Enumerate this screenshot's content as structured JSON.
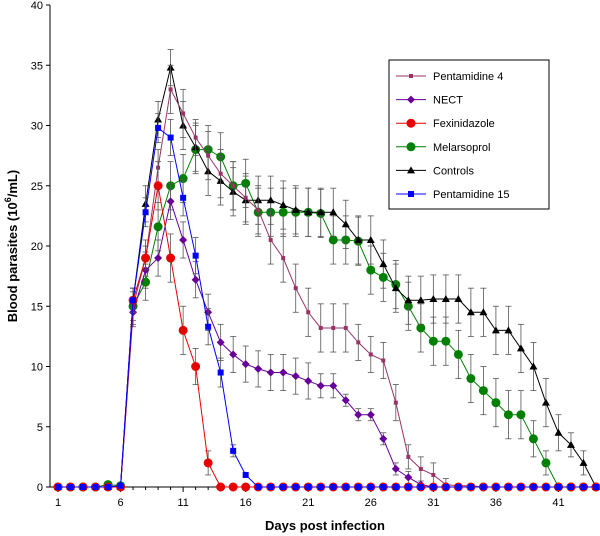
{
  "chart_data": {
    "type": "line",
    "title": "",
    "xlabel": "Days post infection",
    "ylabel_main": "Blood parasites (10",
    "ylabel_sup": "6",
    "ylabel_tail": "/mL)",
    "xlim": [
      1,
      44
    ],
    "ylim": [
      0,
      40
    ],
    "xticks": [
      1,
      6,
      11,
      16,
      21,
      26,
      31,
      36,
      41
    ],
    "yticks": [
      0,
      5,
      10,
      15,
      20,
      25,
      30,
      35,
      40
    ],
    "legend_position": "top-right",
    "series": [
      {
        "name": "Pentamidine 4",
        "color": "#993366",
        "marker": "square-small",
        "x": [
          1,
          2,
          3,
          4,
          5,
          6,
          7,
          8,
          9,
          10,
          11,
          12,
          13,
          14,
          15,
          16,
          17,
          18,
          19,
          20,
          21,
          22,
          23,
          24,
          25,
          26,
          27,
          28,
          29,
          30,
          31,
          32,
          33,
          34,
          35,
          36,
          37,
          38,
          39,
          40,
          41,
          42,
          43,
          44
        ],
        "y": [
          0,
          0,
          0,
          0,
          0,
          0,
          15,
          19,
          26.5,
          33,
          31,
          29,
          27.5,
          26,
          25,
          24,
          23,
          20.5,
          19,
          16.5,
          14.5,
          13.2,
          13.2,
          13.2,
          12,
          11,
          10.5,
          7,
          2.5,
          1.5,
          1,
          0.2,
          0.1,
          0.1,
          0,
          0,
          0,
          0,
          0,
          0,
          0,
          0,
          0,
          0
        ],
        "err": [
          0,
          0,
          0,
          0,
          0,
          0,
          1.2,
          1.5,
          1.5,
          2,
          2,
          1.5,
          2,
          2,
          2,
          2,
          2,
          2,
          2,
          2,
          2,
          2,
          2,
          2,
          1.5,
          1.5,
          1.5,
          1.5,
          1,
          1,
          1,
          0.5,
          0,
          0,
          0,
          0,
          0,
          0,
          0,
          0,
          0,
          0,
          0,
          0
        ]
      },
      {
        "name": "NECT",
        "color": "#660099",
        "marker": "diamond",
        "x": [
          1,
          2,
          3,
          4,
          5,
          6,
          7,
          8,
          9,
          10,
          11,
          12,
          13,
          14,
          15,
          16,
          17,
          18,
          19,
          20,
          21,
          22,
          23,
          24,
          25,
          26,
          27,
          28,
          29,
          30,
          31,
          32,
          33,
          34,
          35,
          36,
          37,
          38,
          39,
          40,
          41,
          42,
          43,
          44
        ],
        "y": [
          0,
          0,
          0,
          0,
          0,
          0,
          14.5,
          18,
          19,
          23.7,
          20.5,
          17.2,
          14.5,
          12,
          11,
          10.2,
          9.8,
          9.5,
          9.5,
          9.2,
          8.8,
          8.4,
          8.4,
          7.2,
          6,
          6,
          4,
          1.5,
          0.8,
          0.2,
          0,
          0,
          0,
          0,
          0,
          0,
          0,
          0,
          0,
          0,
          0,
          0,
          0,
          0
        ],
        "err": [
          0,
          0,
          0,
          0,
          0,
          0,
          1.2,
          1.5,
          1.5,
          1.5,
          1.5,
          1.5,
          1.5,
          1.5,
          1.5,
          1.5,
          1.5,
          1.5,
          1.5,
          1.5,
          1.5,
          1,
          1,
          0.5,
          0.5,
          0.5,
          0.5,
          0.5,
          0.5,
          0,
          0,
          0,
          0,
          0,
          0,
          0,
          0,
          0,
          0,
          0,
          0,
          0,
          0,
          0
        ]
      },
      {
        "name": "Fexinidazole",
        "color": "#e60000",
        "marker": "circle",
        "x": [
          1,
          2,
          3,
          4,
          5,
          6,
          7,
          8,
          9,
          10,
          11,
          12,
          13,
          14,
          15,
          16,
          17,
          18,
          19,
          20,
          21,
          22,
          23,
          24,
          25,
          26,
          27,
          28,
          29,
          30,
          31,
          32,
          33,
          34,
          35,
          36,
          37,
          38,
          39,
          40,
          41,
          42,
          43,
          44
        ],
        "y": [
          0,
          0,
          0,
          0,
          0,
          0,
          15.5,
          19,
          25,
          19,
          13,
          10,
          2,
          0,
          0,
          0,
          0,
          0,
          0,
          0,
          0,
          0,
          0,
          0,
          0,
          0,
          0,
          0,
          0,
          0,
          0,
          0,
          0,
          0,
          0,
          0,
          0,
          0,
          0,
          0,
          0,
          0,
          0,
          0
        ],
        "err": [
          0,
          0,
          0,
          0,
          0,
          0,
          1,
          1,
          2,
          2,
          2,
          1.5,
          1,
          0,
          0,
          0,
          0,
          0,
          0,
          0,
          0,
          0,
          0,
          0,
          0,
          0,
          0,
          0,
          0,
          0,
          0,
          0,
          0,
          0,
          0,
          0,
          0,
          0,
          0,
          0,
          0,
          0,
          0,
          0
        ]
      },
      {
        "name": "Melarsoprol",
        "color": "#008000",
        "marker": "circle",
        "x": [
          1,
          2,
          3,
          4,
          5,
          6,
          7,
          8,
          9,
          10,
          11,
          12,
          13,
          14,
          15,
          16,
          17,
          18,
          19,
          20,
          21,
          22,
          23,
          24,
          25,
          26,
          27,
          28,
          29,
          30,
          31,
          32,
          33,
          34,
          35,
          36,
          37,
          38,
          39,
          40,
          41,
          42,
          43,
          44
        ],
        "y": [
          0,
          0,
          0,
          0,
          0.2,
          0.1,
          15,
          17,
          21.6,
          25,
          25.6,
          28,
          28,
          27.4,
          25,
          25.2,
          22.8,
          22.8,
          22.8,
          22.8,
          22.8,
          22.7,
          20.5,
          20.5,
          20.4,
          18,
          17.4,
          16.8,
          15,
          13.2,
          12.1,
          12.1,
          11,
          9,
          8,
          7,
          6,
          6,
          4,
          2,
          0,
          0,
          0,
          0
        ],
        "err": [
          0,
          0,
          0,
          0,
          0,
          0,
          1.5,
          1.5,
          2,
          2,
          2,
          2,
          2,
          2,
          2,
          2,
          2,
          2,
          2,
          2,
          2,
          2,
          2,
          2,
          2,
          2,
          2,
          2,
          2,
          2,
          2,
          2,
          2,
          2,
          2,
          2,
          2,
          2,
          1.5,
          1,
          0,
          0,
          0,
          0
        ]
      },
      {
        "name": "Controls",
        "color": "#000000",
        "marker": "triangle",
        "x": [
          1,
          2,
          3,
          4,
          5,
          6,
          7,
          8,
          9,
          10,
          11,
          12,
          13,
          14,
          15,
          16,
          17,
          18,
          19,
          20,
          21,
          22,
          23,
          24,
          25,
          26,
          27,
          28,
          29,
          30,
          31,
          32,
          33,
          34,
          35,
          36,
          37,
          38,
          39,
          40,
          41,
          42,
          43,
          44
        ],
        "y": [
          0,
          0,
          0,
          0,
          0,
          0,
          15.5,
          23.5,
          30.5,
          34.8,
          30,
          28.2,
          26.2,
          25.4,
          24.5,
          23.8,
          23.8,
          23.8,
          23.4,
          23,
          22.8,
          22.8,
          22.8,
          21.8,
          20.5,
          20.5,
          18.5,
          16.5,
          15.5,
          15.5,
          15.6,
          15.6,
          15.6,
          14.5,
          14.5,
          13,
          13,
          11.5,
          10,
          7,
          4.5,
          3.5,
          2,
          0
        ],
        "err": [
          0,
          0,
          0,
          0,
          0,
          0,
          1,
          1.5,
          1.5,
          1.5,
          2,
          2,
          2,
          2,
          2,
          2,
          2,
          2,
          2,
          2,
          2,
          2,
          2,
          2,
          2,
          2,
          2,
          2,
          2,
          2,
          2,
          2,
          2,
          2,
          2,
          2,
          2,
          2,
          2,
          2,
          1.5,
          1,
          1,
          0
        ]
      },
      {
        "name": "Pentamidine 15",
        "color": "#0000ff",
        "marker": "square",
        "x": [
          1,
          2,
          3,
          4,
          5,
          6,
          7,
          8,
          9,
          10,
          11,
          12,
          13,
          14,
          15,
          16,
          17,
          18,
          19,
          20,
          21,
          22,
          23,
          24,
          25,
          26,
          27,
          28,
          29,
          30,
          31,
          32,
          33,
          34,
          35,
          36,
          37,
          38,
          39,
          40,
          41,
          42,
          43,
          44
        ],
        "y": [
          0,
          0,
          0,
          0,
          0,
          0.1,
          15.5,
          22.8,
          29.8,
          29,
          24,
          19.2,
          13.3,
          9.5,
          3,
          1,
          0,
          0,
          0,
          0,
          0,
          0,
          0,
          0,
          0,
          0,
          0,
          0,
          0,
          0,
          0,
          0,
          0,
          0,
          0,
          0,
          0,
          0,
          0,
          0,
          0,
          0,
          0,
          0
        ],
        "err": [
          0,
          0,
          0,
          0,
          0,
          0,
          1,
          1.2,
          1.2,
          1.5,
          1.5,
          1.5,
          1.5,
          1.2,
          0.5,
          0,
          0,
          0,
          0,
          0,
          0,
          0,
          0,
          0,
          0,
          0,
          0,
          0,
          0,
          0,
          0,
          0,
          0,
          0,
          0,
          0,
          0,
          0,
          0,
          0,
          0,
          0,
          0,
          0
        ]
      }
    ]
  }
}
